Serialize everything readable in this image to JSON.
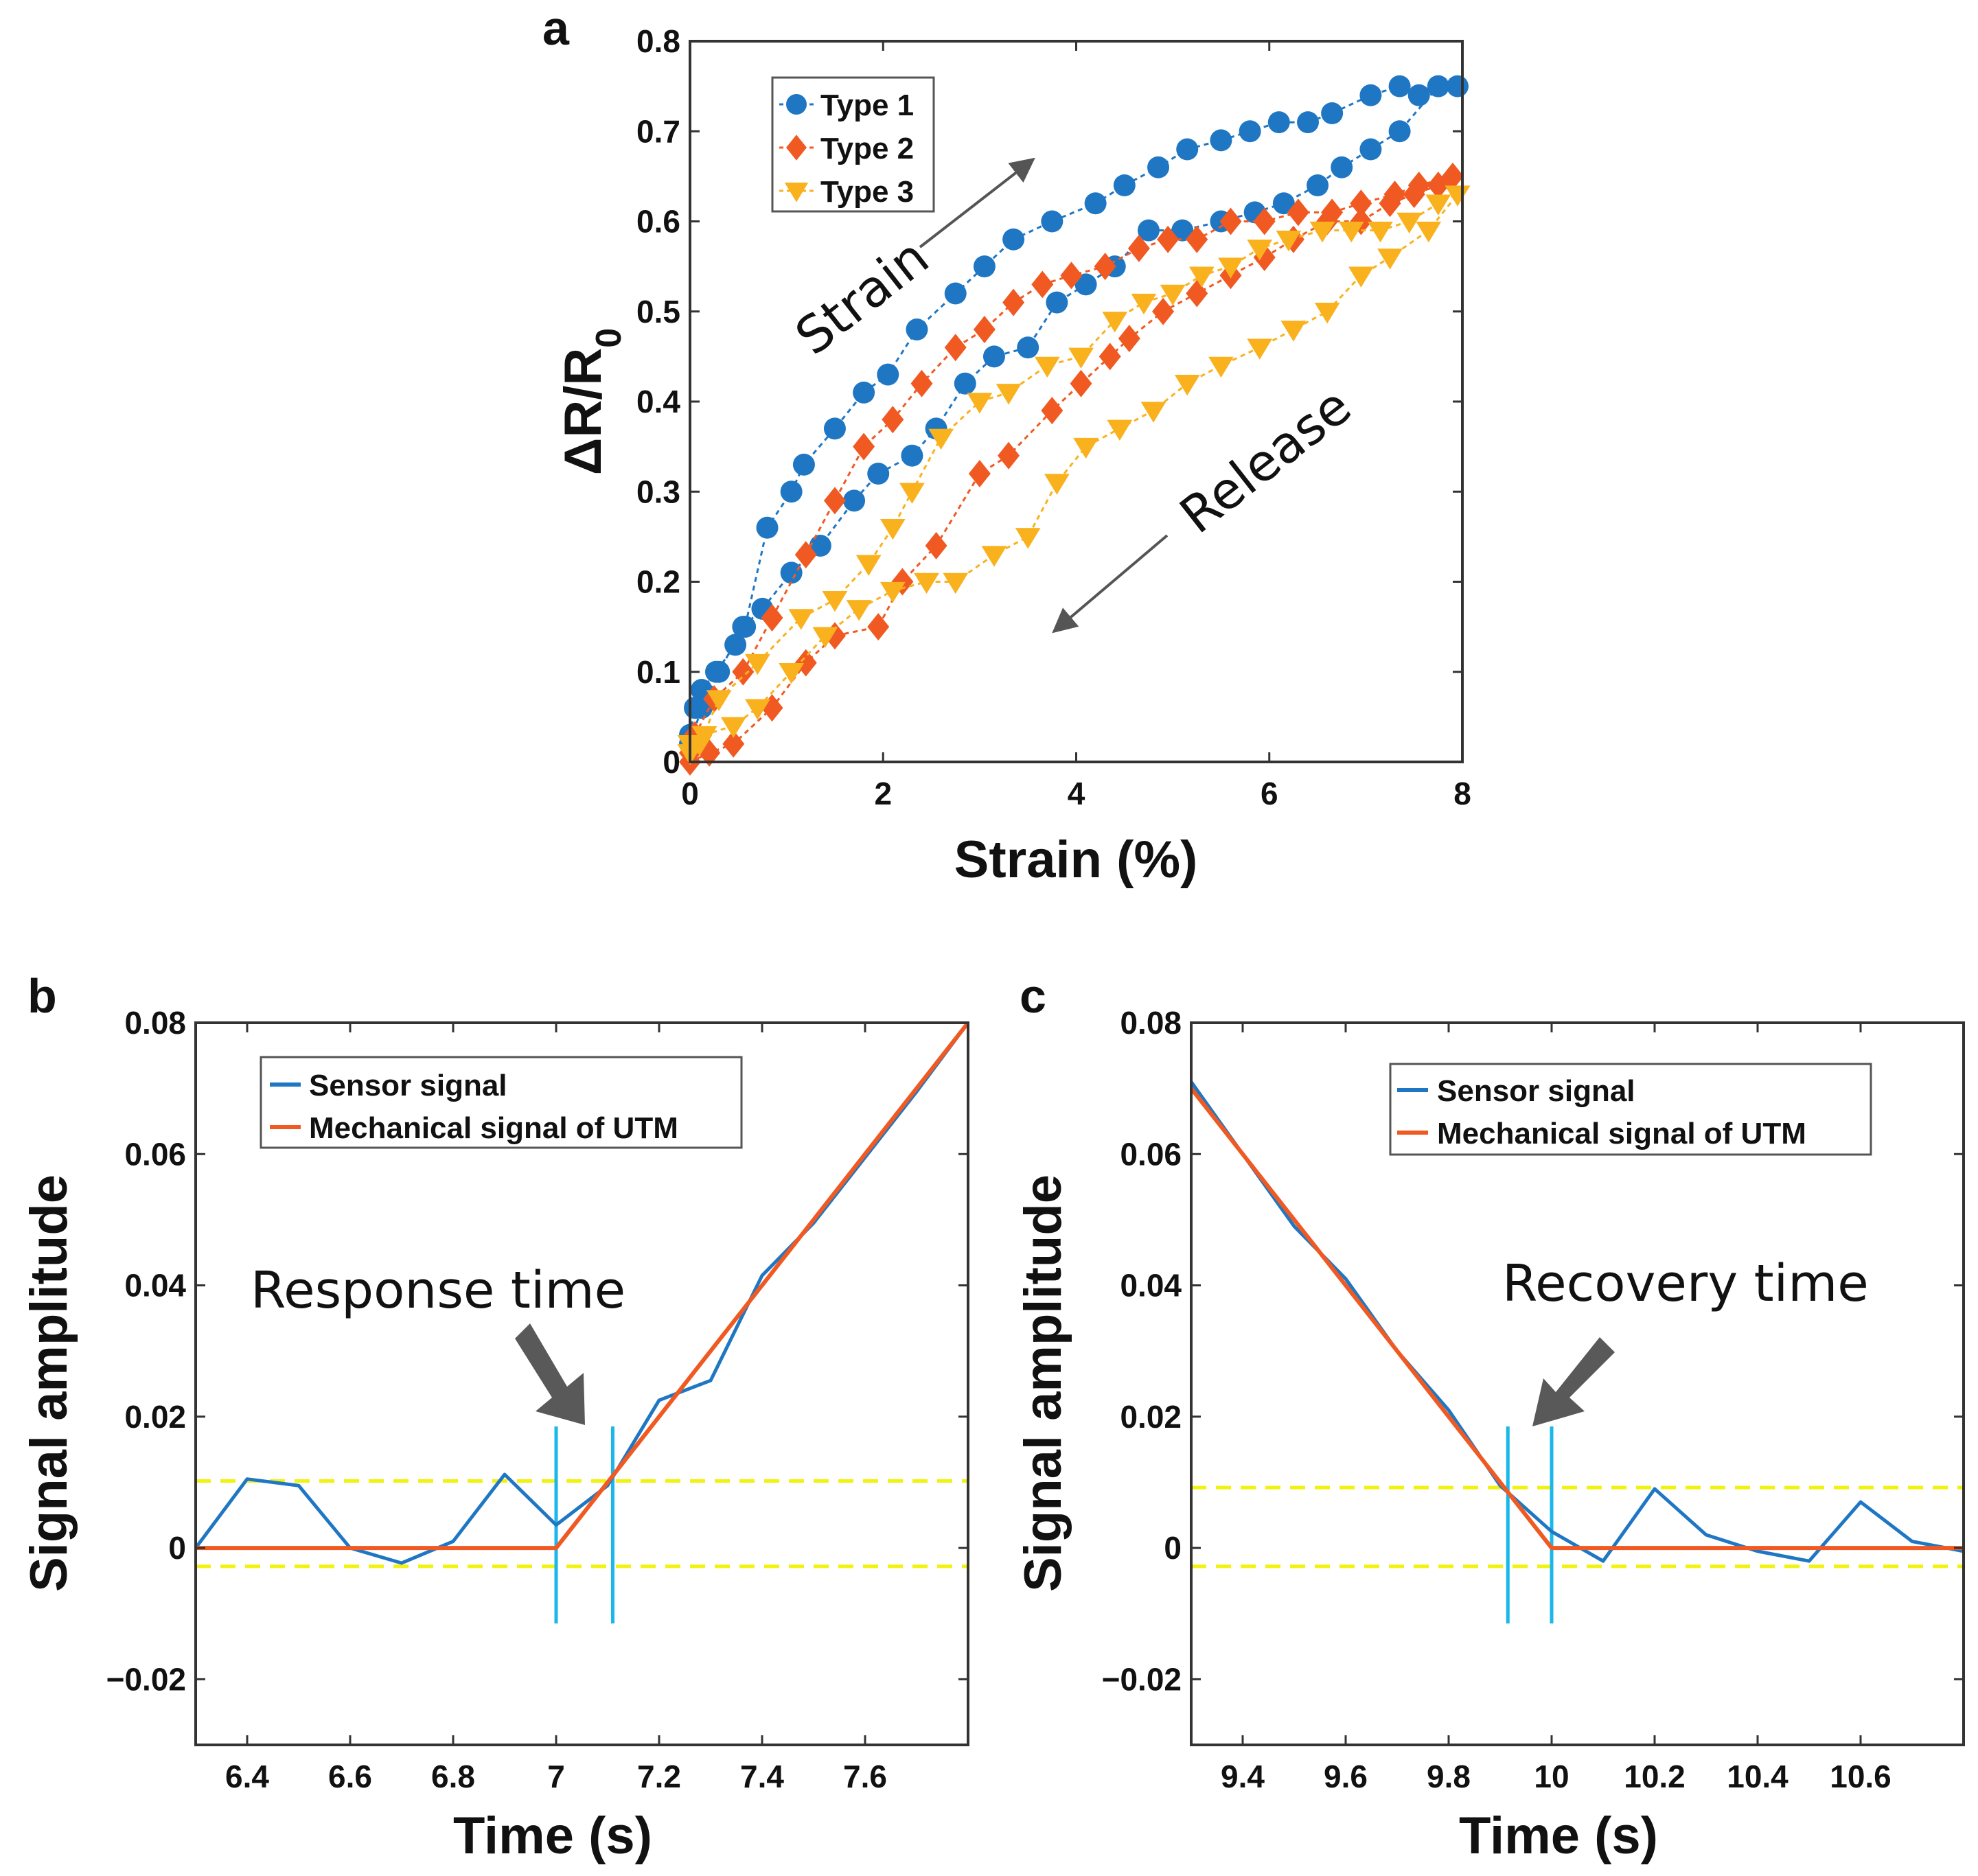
{
  "colors": {
    "type1": "#1f77c4",
    "type2": "#f05a22",
    "type3": "#f9b21e",
    "sensor": "#1f77c4",
    "mechanical": "#f05a22",
    "threshold": "#f2f20f",
    "marker_line": "#19b7ea",
    "annotation_arrow": "#555555"
  },
  "chart_data": [
    {
      "panel": "a",
      "type": "scatter",
      "title": "",
      "xlabel": "Strain (%)",
      "ylabel": "ΔR/R",
      "ylabel_sub": "0",
      "xlim": [
        0,
        8
      ],
      "ylim": [
        0,
        0.8
      ],
      "xticks": [
        0,
        2,
        4,
        6,
        8
      ],
      "yticks": [
        0,
        0.1,
        0.2,
        0.3,
        0.4,
        0.5,
        0.6,
        0.7,
        0.8
      ],
      "xtick_labels": [
        "0",
        "2",
        "4",
        "6",
        "8"
      ],
      "ytick_labels": [
        "0",
        "0.1",
        "0.2",
        "0.3",
        "0.4",
        "0.5",
        "0.6",
        "0.7",
        "0.8"
      ],
      "legend": [
        "Type 1",
        "Type 2",
        "Type 3"
      ],
      "annotations": [
        "Strain",
        "Release"
      ],
      "series": [
        {
          "name": "Type 1",
          "marker": "circle",
          "color_key": "type1",
          "x": [
            0,
            0.05,
            0.12,
            0.27,
            0.47,
            0.57,
            0.8,
            1.05,
            1.18,
            1.5,
            1.8,
            2.05,
            2.35,
            2.75,
            3.05,
            3.35,
            3.75,
            4.2,
            4.5,
            4.85,
            5.15,
            5.5,
            5.8,
            6.1,
            6.4,
            6.65,
            7.05,
            7.35,
            7.55,
            7.75,
            7.95,
            7.75,
            7.35,
            7.05,
            6.75,
            6.5,
            6.15,
            5.85,
            5.5,
            5.1,
            4.75,
            4.4,
            4.1,
            3.8,
            3.5,
            3.15,
            2.85,
            2.55,
            2.3,
            1.95,
            1.7,
            1.35,
            1.05,
            0.75,
            0.55,
            0.3,
            0.12,
            0
          ],
          "y": [
            0.03,
            0.06,
            0.08,
            0.1,
            0.13,
            0.15,
            0.26,
            0.3,
            0.33,
            0.37,
            0.41,
            0.43,
            0.48,
            0.52,
            0.55,
            0.58,
            0.6,
            0.62,
            0.64,
            0.66,
            0.68,
            0.69,
            0.7,
            0.71,
            0.71,
            0.72,
            0.74,
            0.75,
            0.74,
            0.75,
            0.75,
            0.75,
            0.7,
            0.68,
            0.66,
            0.64,
            0.62,
            0.61,
            0.6,
            0.59,
            0.59,
            0.55,
            0.53,
            0.51,
            0.46,
            0.45,
            0.42,
            0.37,
            0.34,
            0.32,
            0.29,
            0.24,
            0.21,
            0.17,
            0.15,
            0.1,
            0.06,
            0.02
          ]
        },
        {
          "name": "Type 2",
          "marker": "diamond",
          "color_key": "type2",
          "x": [
            0,
            0.05,
            0.25,
            0.55,
            0.85,
            1.2,
            1.5,
            1.8,
            2.1,
            2.4,
            2.75,
            3.05,
            3.35,
            3.65,
            3.95,
            4.3,
            4.65,
            4.95,
            5.25,
            5.6,
            5.95,
            6.3,
            6.65,
            6.95,
            7.3,
            7.55,
            7.9,
            7.75,
            7.5,
            7.25,
            6.95,
            6.6,
            6.25,
            5.95,
            5.6,
            5.25,
            4.9,
            4.55,
            4.35,
            4.05,
            3.75,
            3.3,
            3.0,
            2.55,
            2.2,
            1.95,
            1.5,
            1.2,
            0.85,
            0.45,
            0.2,
            0
          ],
          "y": [
            0.01,
            0.03,
            0.07,
            0.1,
            0.16,
            0.23,
            0.29,
            0.35,
            0.38,
            0.42,
            0.46,
            0.48,
            0.51,
            0.53,
            0.54,
            0.55,
            0.57,
            0.58,
            0.58,
            0.6,
            0.6,
            0.61,
            0.61,
            0.62,
            0.63,
            0.64,
            0.65,
            0.64,
            0.63,
            0.62,
            0.6,
            0.6,
            0.58,
            0.56,
            0.54,
            0.52,
            0.5,
            0.47,
            0.45,
            0.42,
            0.39,
            0.34,
            0.32,
            0.24,
            0.2,
            0.15,
            0.14,
            0.11,
            0.06,
            0.02,
            0.01,
            0.0
          ]
        },
        {
          "name": "Type 3",
          "marker": "triangle-down",
          "color_key": "type3",
          "x": [
            0,
            0.1,
            0.3,
            0.7,
            1.15,
            1.5,
            1.85,
            2.1,
            2.3,
            2.6,
            3.0,
            3.3,
            3.7,
            4.05,
            4.4,
            4.7,
            5.0,
            5.3,
            5.6,
            5.9,
            6.2,
            6.55,
            6.85,
            7.15,
            7.45,
            7.75,
            7.95,
            7.65,
            7.25,
            6.95,
            6.6,
            6.25,
            5.9,
            5.5,
            5.15,
            4.8,
            4.45,
            4.1,
            3.8,
            3.5,
            3.15,
            2.75,
            2.45,
            2.1,
            1.75,
            1.4,
            1.05,
            0.7,
            0.45,
            0.15,
            0
          ],
          "y": [
            0.01,
            0.02,
            0.07,
            0.11,
            0.16,
            0.18,
            0.22,
            0.26,
            0.3,
            0.36,
            0.4,
            0.41,
            0.44,
            0.45,
            0.49,
            0.51,
            0.52,
            0.54,
            0.55,
            0.57,
            0.58,
            0.59,
            0.59,
            0.59,
            0.6,
            0.62,
            0.63,
            0.59,
            0.56,
            0.54,
            0.5,
            0.48,
            0.46,
            0.44,
            0.42,
            0.39,
            0.37,
            0.35,
            0.31,
            0.25,
            0.23,
            0.2,
            0.2,
            0.19,
            0.17,
            0.14,
            0.1,
            0.06,
            0.04,
            0.03,
            0.02
          ]
        }
      ]
    },
    {
      "panel": "b",
      "type": "line",
      "title": "",
      "xlabel": "Time (s)",
      "ylabel": "Signal amplitude",
      "xlim": [
        6.3,
        7.8
      ],
      "ylim": [
        -0.03,
        0.08
      ],
      "xticks": [
        6.4,
        6.6,
        6.8,
        7.0,
        7.2,
        7.4,
        7.6
      ],
      "yticks": [
        -0.02,
        0,
        0.02,
        0.04,
        0.06,
        0.08
      ],
      "xtick_labels": [
        "6.4",
        "6.6",
        "6.8",
        "7",
        "7.2",
        "7.4",
        "7.6"
      ],
      "ytick_labels": [
        "−0.02",
        "0",
        "0.02",
        "0.04",
        "0.06",
        "0.08"
      ],
      "legend": [
        "Sensor signal",
        "Mechanical signal of UTM"
      ],
      "annotation": "Response time",
      "thresholds": [
        0.0102,
        -0.0028
      ],
      "marker_times": [
        7.0,
        7.11
      ],
      "series": [
        {
          "name": "Sensor signal",
          "color_key": "sensor",
          "x": [
            6.3,
            6.4,
            6.5,
            6.6,
            6.7,
            6.8,
            6.9,
            7.0,
            7.1,
            7.2,
            7.3,
            7.4,
            7.5,
            7.6,
            7.7,
            7.8
          ],
          "y": [
            0,
            0.0105,
            0.0095,
            0,
            -0.0023,
            0.001,
            0.0112,
            0.0035,
            0.0095,
            0.0225,
            0.0255,
            0.0415,
            0.0495,
            0.0595,
            0.0695,
            0.08
          ]
        },
        {
          "name": "Mechanical signal of UTM",
          "color_key": "mechanical",
          "x": [
            6.3,
            7.0,
            7.8
          ],
          "y": [
            0,
            0,
            0.08
          ]
        }
      ]
    },
    {
      "panel": "c",
      "type": "line",
      "title": "",
      "xlabel": "Time (s)",
      "ylabel": "Signal amplitude",
      "xlim": [
        9.3,
        10.8
      ],
      "ylim": [
        -0.03,
        0.08
      ],
      "xticks": [
        9.4,
        9.6,
        9.8,
        10.0,
        10.2,
        10.4,
        10.6
      ],
      "yticks": [
        -0.02,
        0,
        0.02,
        0.04,
        0.06,
        0.08
      ],
      "xtick_labels": [
        "9.4",
        "9.6",
        "9.8",
        "10",
        "10.2",
        "10.4",
        "10.6"
      ],
      "ytick_labels": [
        "−0.02",
        "0",
        "0.02",
        "0.04",
        "0.06",
        "0.08"
      ],
      "legend": [
        "Sensor signal",
        "Mechanical signal of UTM"
      ],
      "annotation": "Recovery time",
      "thresholds": [
        0.0092,
        -0.0028
      ],
      "marker_times": [
        9.915,
        10.0
      ],
      "series": [
        {
          "name": "Sensor signal",
          "color_key": "sensor",
          "x": [
            9.3,
            9.4,
            9.5,
            9.6,
            9.7,
            9.8,
            9.9,
            10.0,
            10.1,
            10.2,
            10.3,
            10.4,
            10.5,
            10.6,
            10.7,
            10.8
          ],
          "y": [
            0.071,
            0.06,
            0.049,
            0.041,
            0.03,
            0.021,
            0.0095,
            0.0025,
            -0.002,
            0.009,
            0.002,
            -0.0005,
            -0.002,
            0.007,
            0.001,
            -0.0005
          ]
        },
        {
          "name": "Mechanical signal of UTM",
          "color_key": "mechanical",
          "x": [
            9.3,
            10.0,
            10.8
          ],
          "y": [
            0.07,
            0,
            0
          ]
        }
      ]
    }
  ]
}
